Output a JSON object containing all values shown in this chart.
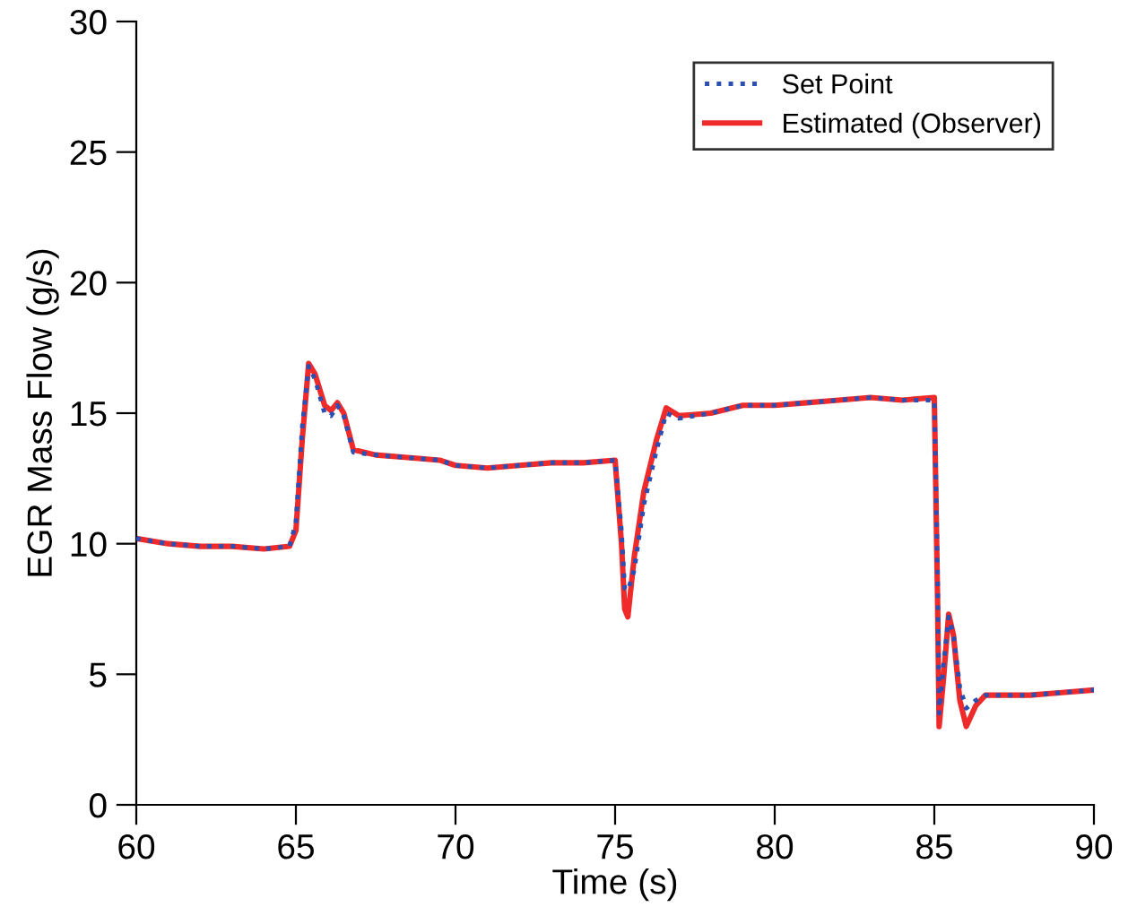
{
  "chart_data": {
    "type": "line",
    "xlabel": "Time (s)",
    "ylabel": "EGR Mass Flow (g/s)",
    "xlim": [
      60,
      90
    ],
    "ylim": [
      0,
      30
    ],
    "xticks": [
      60,
      65,
      70,
      75,
      80,
      85,
      90
    ],
    "yticks": [
      0,
      5,
      10,
      15,
      20,
      25,
      30
    ],
    "grid": false,
    "legend": "top right",
    "series": [
      {
        "name": "Set Point",
        "color": "#2b4fb3",
        "line_style": "dotted",
        "x": [
          60,
          61,
          62,
          63,
          64,
          64.8,
          65.0,
          65.2,
          65.4,
          65.6,
          65.9,
          66.1,
          66.3,
          66.5,
          66.8,
          67.5,
          68.5,
          69.5,
          70,
          71,
          72,
          73,
          74,
          75.0,
          75.2,
          75.3,
          75.4,
          75.6,
          75.9,
          76.3,
          76.6,
          77,
          78,
          79,
          80,
          81,
          82,
          83,
          84,
          85.0,
          85.1,
          85.15,
          85.3,
          85.45,
          85.6,
          85.8,
          86.0,
          86.3,
          86.6,
          87,
          88,
          89,
          90
        ],
        "values": [
          10.2,
          10.0,
          9.9,
          9.9,
          9.8,
          9.9,
          10.8,
          14.5,
          16.8,
          16.3,
          15.0,
          14.9,
          15.3,
          14.9,
          13.5,
          13.4,
          13.3,
          13.2,
          13.0,
          12.9,
          13.0,
          13.1,
          13.1,
          13.2,
          10.5,
          8.3,
          8.2,
          9.0,
          11.5,
          13.6,
          15.0,
          14.8,
          15.0,
          15.3,
          15.3,
          15.4,
          15.5,
          15.6,
          15.5,
          15.5,
          9,
          3.5,
          5.5,
          7.2,
          6.5,
          4.5,
          3.7,
          4.0,
          4.2,
          4.2,
          4.2,
          4.3,
          4.4
        ]
      },
      {
        "name": "Estimated (Observer)",
        "color": "#ee2a2a",
        "line_style": "solid",
        "x": [
          60,
          61,
          62,
          63,
          64,
          64.8,
          65.0,
          65.2,
          65.4,
          65.6,
          65.9,
          66.1,
          66.3,
          66.5,
          66.8,
          67.5,
          68.5,
          69.5,
          70,
          71,
          72,
          73,
          74,
          75.0,
          75.2,
          75.3,
          75.4,
          75.6,
          75.9,
          76.3,
          76.6,
          77,
          78,
          79,
          80,
          81,
          82,
          83,
          84,
          85.0,
          85.1,
          85.15,
          85.3,
          85.45,
          85.6,
          85.8,
          86.0,
          86.3,
          86.6,
          87,
          88,
          89,
          90
        ],
        "values": [
          10.2,
          10.0,
          9.9,
          9.9,
          9.8,
          9.9,
          10.5,
          14.0,
          16.9,
          16.5,
          15.3,
          15.1,
          15.4,
          15.0,
          13.6,
          13.4,
          13.3,
          13.2,
          13.0,
          12.9,
          13.0,
          13.1,
          13.1,
          13.2,
          10.0,
          7.5,
          7.2,
          9.5,
          12.0,
          14.0,
          15.2,
          14.9,
          15.0,
          15.3,
          15.3,
          15.4,
          15.5,
          15.6,
          15.5,
          15.6,
          8.0,
          3.0,
          5.0,
          7.3,
          6.5,
          4.0,
          3.0,
          3.8,
          4.2,
          4.2,
          4.2,
          4.3,
          4.4
        ]
      }
    ]
  }
}
